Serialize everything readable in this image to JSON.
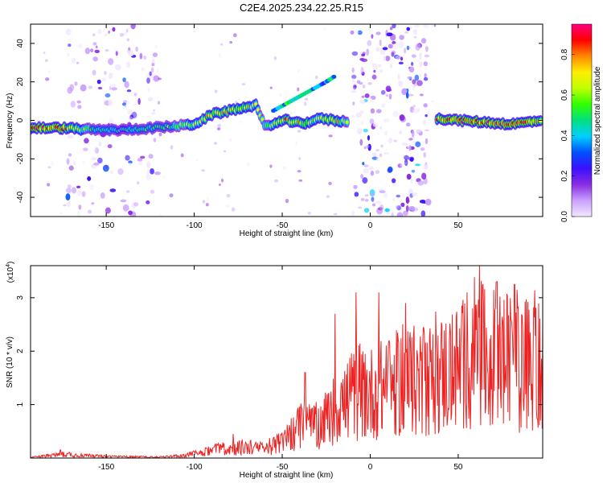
{
  "title": "C2E4.2025.234.22.25.R15",
  "chart_data": [
    {
      "type": "heatmap",
      "name": "spectrogram",
      "xlabel": "Height of straight line (km)",
      "ylabel": "Frequency (Hz)",
      "xlim": [
        -193,
        98
      ],
      "ylim": [
        -50,
        50
      ],
      "xticks": [
        -150,
        -100,
        -50,
        0,
        50
      ],
      "yticks": [
        -40,
        -20,
        0,
        20,
        40
      ],
      "colorbar": {
        "label": "Normalized spectral amplitude",
        "range": [
          0,
          0.95
        ],
        "ticks": [
          0.0,
          0.2,
          0.4,
          0.6,
          0.8
        ],
        "colors": [
          "#f3e8ff",
          "#c9a0ff",
          "#8a2be2",
          "#3a10ff",
          "#0050ff",
          "#00d0ff",
          "#00e080",
          "#30ff00",
          "#c0ff00",
          "#ffee00",
          "#ff8800",
          "#ff0000",
          "#ff0080"
        ]
      },
      "ridge": [
        {
          "x": -193,
          "y": -4,
          "a": 0.9
        },
        {
          "x": -175,
          "y": -4,
          "a": 0.9
        },
        {
          "x": -155,
          "y": -5,
          "a": 0.5
        },
        {
          "x": -140,
          "y": -5,
          "a": 0.45
        },
        {
          "x": -125,
          "y": -4,
          "a": 0.55
        },
        {
          "x": -110,
          "y": -3,
          "a": 0.6
        },
        {
          "x": -100,
          "y": -2,
          "a": 0.7
        },
        {
          "x": -90,
          "y": 3,
          "a": 0.75
        },
        {
          "x": -80,
          "y": 5,
          "a": 0.8
        },
        {
          "x": -65,
          "y": 8,
          "a": 0.7
        },
        {
          "x": -60,
          "y": -3,
          "a": 0.6
        },
        {
          "x": -48,
          "y": 0,
          "a": 0.85
        },
        {
          "x": -38,
          "y": -2,
          "a": 0.75
        },
        {
          "x": -30,
          "y": 1,
          "a": 0.7
        },
        {
          "x": -20,
          "y": 0,
          "a": 0.8
        },
        {
          "x": -12,
          "y": -1,
          "a": 0.6
        },
        {
          "x": 38,
          "y": 1,
          "a": 0.85
        },
        {
          "x": 50,
          "y": 0,
          "a": 0.9
        },
        {
          "x": 65,
          "y": -1,
          "a": 0.9
        },
        {
          "x": 80,
          "y": -2,
          "a": 0.9
        },
        {
          "x": 98,
          "y": 0,
          "a": 0.85
        }
      ],
      "upper_branch": [
        {
          "x": -55,
          "y": 5
        },
        {
          "x": -45,
          "y": 10
        },
        {
          "x": -35,
          "y": 15
        },
        {
          "x": -25,
          "y": 20
        },
        {
          "x": -20,
          "y": 23
        }
      ],
      "noise_bands": [
        {
          "x0": -172,
          "x1": -120,
          "density": 0.5
        },
        {
          "x0": -10,
          "x1": 33,
          "density": 1.0
        }
      ]
    },
    {
      "type": "line",
      "name": "snr",
      "xlabel": "Height of straight line (km)",
      "ylabel": "SNR (10 * v/v)",
      "scale_label": "(x10",
      "scale_exponent": "4",
      "scale_close": ")",
      "xlim": [
        -193,
        98
      ],
      "ylim": [
        0,
        3.6
      ],
      "xticks": [
        -150,
        -100,
        -50,
        0,
        50
      ],
      "yticks": [
        1,
        2,
        3
      ],
      "color": "#ee2222",
      "envelope": [
        {
          "x": -193,
          "y": 0.02
        },
        {
          "x": -175,
          "y": 0.12
        },
        {
          "x": -150,
          "y": 0.05
        },
        {
          "x": -120,
          "y": 0.03
        },
        {
          "x": -105,
          "y": 0.08
        },
        {
          "x": -90,
          "y": 0.25
        },
        {
          "x": -75,
          "y": 0.35
        },
        {
          "x": -60,
          "y": 0.3
        },
        {
          "x": -50,
          "y": 0.5
        },
        {
          "x": -40,
          "y": 1.0
        },
        {
          "x": -30,
          "y": 1.0
        },
        {
          "x": -20,
          "y": 1.6
        },
        {
          "x": -10,
          "y": 2.0
        },
        {
          "x": 0,
          "y": 2.1
        },
        {
          "x": 10,
          "y": 2.3
        },
        {
          "x": 20,
          "y": 2.5
        },
        {
          "x": 30,
          "y": 2.5
        },
        {
          "x": 40,
          "y": 2.7
        },
        {
          "x": 50,
          "y": 2.9
        },
        {
          "x": 60,
          "y": 3.3
        },
        {
          "x": 70,
          "y": 3.2
        },
        {
          "x": 80,
          "y": 3.1
        },
        {
          "x": 90,
          "y": 3.0
        },
        {
          "x": 98,
          "y": 3.0
        }
      ],
      "spikes": [
        {
          "x": -176,
          "y": 0.15
        },
        {
          "x": -78,
          "y": 0.45
        },
        {
          "x": -37,
          "y": 1.6
        },
        {
          "x": -20,
          "y": 2.7
        },
        {
          "x": -8,
          "y": 3.1
        },
        {
          "x": 5,
          "y": 3.1
        },
        {
          "x": 20,
          "y": 2.9
        },
        {
          "x": 55,
          "y": 3.1
        },
        {
          "x": 62,
          "y": 3.6
        },
        {
          "x": 72,
          "y": 3.3
        },
        {
          "x": 82,
          "y": 3.25
        }
      ]
    }
  ]
}
